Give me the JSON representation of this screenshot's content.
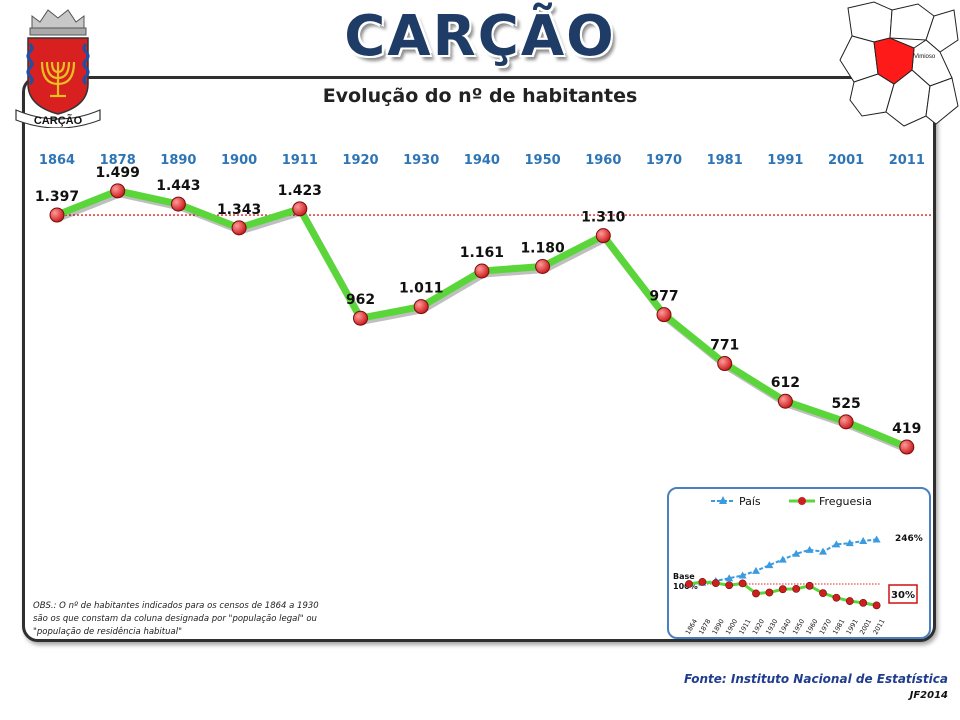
{
  "header": {
    "title": "CARÇÃO",
    "subtitle": "Evolução do nº de habitantes"
  },
  "coat_of_arms": {
    "label": "CARÇÃO"
  },
  "location_map": {
    "label": "Vimioso",
    "highlight_color": "#ff0000"
  },
  "chart_data": {
    "type": "line",
    "categories": [
      "1864",
      "1878",
      "1890",
      "1900",
      "1911",
      "1920",
      "1930",
      "1940",
      "1950",
      "1960",
      "1970",
      "1981",
      "1991",
      "2001",
      "2011"
    ],
    "values": [
      1397,
      1499,
      1443,
      1343,
      1423,
      962,
      1011,
      1161,
      1180,
      1310,
      977,
      771,
      612,
      525,
      419
    ],
    "value_labels": [
      "1.397",
      "1.499",
      "1.443",
      "1.343",
      "1.423",
      "962",
      "1.011",
      "1.161",
      "1.180",
      "1.310",
      "977",
      "771",
      "612",
      "525",
      "419"
    ],
    "reference_line": 1397,
    "ylim": [
      280,
      1650
    ],
    "line_color": "#5bd63a",
    "marker_color": "#cc1f1f",
    "tick_color": "#2e75b6"
  },
  "inset_chart": {
    "legend": [
      "País",
      "Freguesia"
    ],
    "base_label": "Base\n100%",
    "country_end_label": "246%",
    "parish_end_label": "30%",
    "country_color": "#3b9be0",
    "parish_color": "#5bd63a",
    "categories": [
      "1864",
      "1878",
      "1890",
      "1900",
      "1911",
      "1920",
      "1930",
      "1940",
      "1950",
      "1960",
      "1970",
      "1981",
      "1991",
      "2001",
      "2011"
    ],
    "country_percent": [
      100,
      104,
      110,
      119,
      128,
      143,
      162,
      180,
      199,
      212,
      206,
      230,
      234,
      241,
      246
    ],
    "parish_percent": [
      100,
      107,
      103,
      96,
      102,
      69,
      72,
      83,
      84,
      94,
      70,
      55,
      44,
      38,
      30
    ]
  },
  "notes": {
    "obs": "OBS.: O nº de habitantes indicados para os censos de 1864 a 1930 são os que constam da coluna designada por \"população legal\" ou \"população de residência habitual\"",
    "source": "Fonte: Instituto Nacional de Estatística",
    "credit": "JF2014"
  }
}
